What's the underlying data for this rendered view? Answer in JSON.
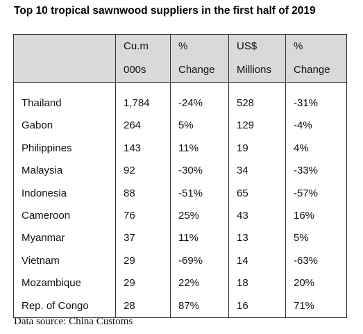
{
  "title": "Top 10 tropical sawnwood suppliers in the first half of 2019",
  "headers": {
    "row1": [
      "",
      "Cu.m",
      "%",
      "US$",
      "%"
    ],
    "row2": [
      "",
      "000s",
      "Change",
      "Millions",
      "Change"
    ]
  },
  "rows": [
    [
      "Thailand",
      "1,784",
      "-24%",
      "528",
      "-31%"
    ],
    [
      "Gabon",
      "264",
      "5%",
      "129",
      "-4%"
    ],
    [
      "Philippines",
      "143",
      "11%",
      "19",
      "4%"
    ],
    [
      "Malaysia",
      "92",
      "-30%",
      "34",
      "-33%"
    ],
    [
      "Indonesia",
      "88",
      "-51%",
      "65",
      "-57%"
    ],
    [
      "Cameroon",
      "76",
      "25%",
      "43",
      "16%"
    ],
    [
      "Myanmar",
      "37",
      "11%",
      "13",
      "5%"
    ],
    [
      "Vietnam",
      "29",
      "-69%",
      "14",
      "-63%"
    ],
    [
      "Mozambique",
      "29",
      "22%",
      "18",
      "20%"
    ],
    [
      "Rep. of Congo",
      "28",
      "87%",
      "16",
      "71%"
    ]
  ],
  "source": "Data source: China Customs",
  "colors": {
    "header_bg": "#d9d9d9",
    "border": "#333333",
    "text": "#111111"
  }
}
